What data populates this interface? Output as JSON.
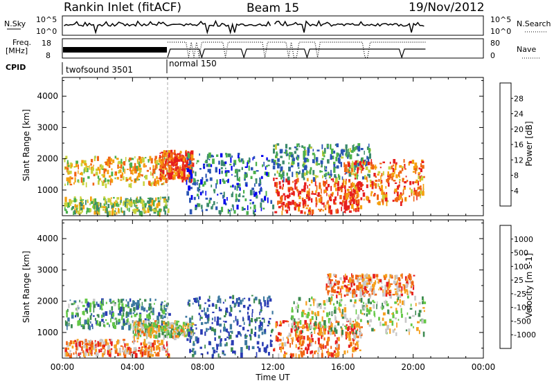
{
  "header": {
    "station": "Rankin Inlet (fitACF)",
    "beam": "Beam 15",
    "date": "19/Nov/2012"
  },
  "strips": {
    "nsky_label": "N.Sky",
    "nsky_ticks": [
      "10^5",
      "10^0"
    ],
    "nsearch_label": "N.Search",
    "freq_label_1": "Freq.",
    "freq_label_2": "[MHz]",
    "freq_ticks": [
      "18",
      "8"
    ],
    "nave_ticks": [
      "80",
      "0"
    ],
    "nave_label": "Nave",
    "cpid_label": "CPID",
    "cpid_modes": [
      {
        "name": "twofsound 3501",
        "start_h": 0,
        "end_h": 6
      },
      {
        "name": "normal 150",
        "start_h": 6,
        "end_h": 24
      }
    ]
  },
  "chart_data": [
    {
      "type": "heatmap",
      "quantity": "power",
      "xlabel": "",
      "ylabel": "Slant Range [km]",
      "xlim": [
        0,
        24
      ],
      "ylim": [
        180,
        4600
      ],
      "yticks": [
        "1000",
        "2000",
        "3000",
        "4000"
      ],
      "colorbar_label": "Power [dB]",
      "colorbar_ticks": [
        "28",
        "24",
        "20",
        "16",
        "12",
        "8",
        "4"
      ],
      "colorbar_colors": [
        "#0000ee",
        "#2a55b4",
        "#3c8a6c",
        "#4bb04b",
        "#c8d23c",
        "#f5a00f",
        "#f06414",
        "#e61e1e"
      ],
      "regions": [
        {
          "x0": 0.1,
          "x1": 6.1,
          "y0": 1200,
          "y1": 2100,
          "level": 0.65
        },
        {
          "x0": 0.1,
          "x1": 6.0,
          "y0": 300,
          "y1": 800,
          "level": 0.5
        },
        {
          "x0": 5.5,
          "x1": 7.4,
          "y0": 1400,
          "y1": 2300,
          "level": 0.85
        },
        {
          "x0": 7.0,
          "x1": 12.0,
          "y0": 300,
          "y1": 2200,
          "level": 0.25
        },
        {
          "x0": 12.0,
          "x1": 17.0,
          "y0": 300,
          "y1": 1400,
          "level": 0.9
        },
        {
          "x0": 12.0,
          "x1": 17.5,
          "y0": 1400,
          "y1": 2500,
          "level": 0.35
        },
        {
          "x0": 16.0,
          "x1": 20.6,
          "y0": 600,
          "y1": 2000,
          "level": 0.8
        }
      ]
    },
    {
      "type": "heatmap",
      "quantity": "velocity",
      "xlabel": "Time UT",
      "ylabel": "Slant Range [km]",
      "xlim": [
        0,
        24
      ],
      "ylim": [
        180,
        4600
      ],
      "xticks": [
        "00:00",
        "04:00",
        "08:00",
        "12:00",
        "16:00",
        "20:00",
        "00:00"
      ],
      "yticks": [
        "1000",
        "2000",
        "3000",
        "4000"
      ],
      "colorbar_label": "Velocity [m s-1]",
      "colorbar_ticks": [
        "1000",
        "500",
        "100",
        "25",
        "-25",
        "-100",
        "-500",
        "-1000"
      ],
      "colorbar_colors": [
        "#2a3cb4",
        "#3c78a0",
        "#3c8a50",
        "#64c846",
        "#c8c8c8",
        "#f5a01e",
        "#f06414",
        "#e61e1e"
      ],
      "regions": [
        {
          "x0": 0.1,
          "x1": 6.1,
          "y0": 1200,
          "y1": 2100,
          "level": 0.3
        },
        {
          "x0": 0.1,
          "x1": 6.0,
          "y0": 300,
          "y1": 800,
          "level": 0.75
        },
        {
          "x0": 4.0,
          "x1": 7.4,
          "y0": 900,
          "y1": 1400,
          "level": 0.55
        },
        {
          "x0": 7.0,
          "x1": 12.0,
          "y0": 300,
          "y1": 2200,
          "level": 0.1
        },
        {
          "x0": 12.0,
          "x1": 17.0,
          "y0": 300,
          "y1": 1400,
          "level": 0.8
        },
        {
          "x0": 13.0,
          "x1": 20.6,
          "y0": 1000,
          "y1": 2200,
          "level": 0.5
        },
        {
          "x0": 15.0,
          "x1": 20.0,
          "y0": 2200,
          "y1": 2900,
          "level": 0.75
        }
      ]
    }
  ]
}
